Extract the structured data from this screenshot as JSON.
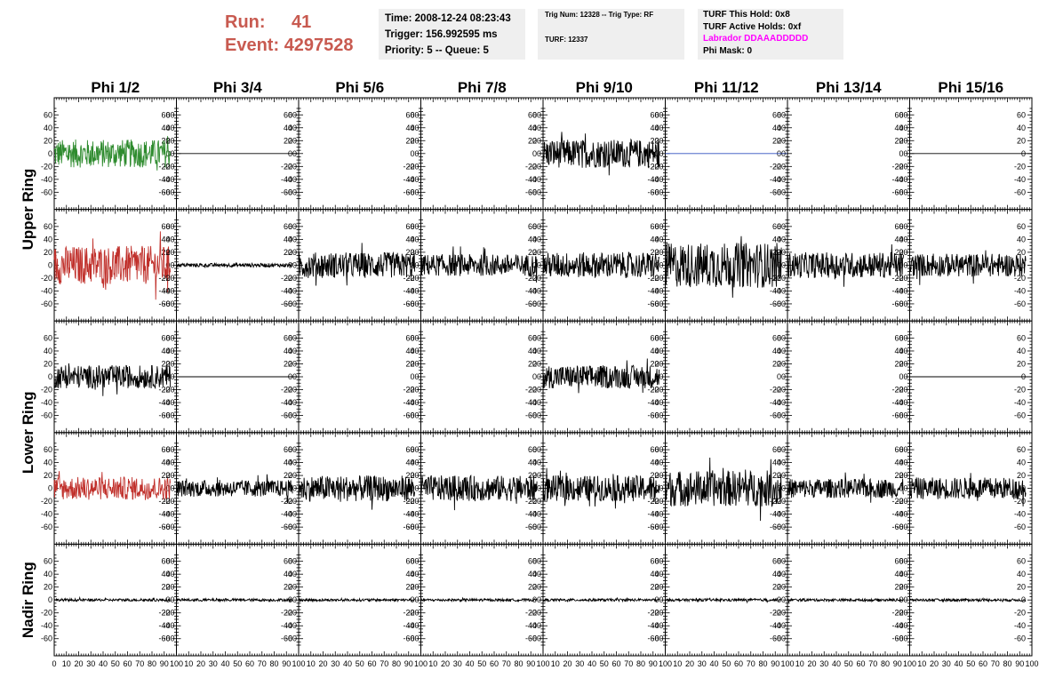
{
  "header": {
    "run_label": "Run:",
    "run_value": "41",
    "event_label": "Event:",
    "event_value": "4297528"
  },
  "info_box_1": {
    "time": "Time: 2008-12-24 08:23:43",
    "trigger": "Trigger: 156.992595 ms",
    "priority": "Priority: 5 -- Queue: 5"
  },
  "info_box_2": {
    "trig_num": "Trig Num: 12328 -- Trig Type: RF",
    "turf": "TURF: 12337"
  },
  "info_box_3": {
    "this_hold": "TURF This Hold: 0x8",
    "active_holds": "TURF Active Holds: 0xf",
    "labrador": "Labrador DDAAADDDDD",
    "phi_mask": "Phi Mask: 0"
  },
  "colors": {
    "run_text": "#c85a50",
    "labrador_text": "#ff00ff",
    "trace_default": "#000000",
    "trace_green": "#2e8b2e",
    "trace_red": "#c0302b",
    "trace_blue": "#3050c0",
    "info_background": "#efefef"
  },
  "chart_data": {
    "type": "line",
    "columns": [
      "Phi 1/2",
      "Phi 3/4",
      "Phi 5/6",
      "Phi 7/8",
      "Phi 9/10",
      "Phi 11/12",
      "Phi 13/14",
      "Phi 15/16"
    ],
    "ring_labels": [
      "Upper Ring",
      "Lower Ring",
      "Nadir Ring"
    ],
    "xlim": [
      0,
      100
    ],
    "ylim": [
      -70,
      70
    ],
    "x_ticks": [
      "0",
      "10",
      "20",
      "30",
      "40",
      "50",
      "60",
      "70",
      "80",
      "90",
      "100"
    ],
    "y_ticks": [
      "60",
      "40",
      "20",
      "0",
      "-20",
      "-40",
      "-60"
    ],
    "grid": false,
    "panel_rows": [
      {
        "ring": "Upper Ring",
        "traces": [
          {
            "color": "green",
            "amplitude": 22,
            "xmax": 95
          },
          {
            "color": "black",
            "amplitude": 0,
            "xmax": 100
          },
          null,
          null,
          {
            "color": "black",
            "amplitude": 22,
            "xmax": 95
          },
          {
            "color": "blue",
            "amplitude": 0,
            "xmax": 100
          },
          null,
          {
            "color": "black",
            "amplitude": 0,
            "xmax": 100
          }
        ]
      },
      {
        "ring": "Upper Ring",
        "traces": [
          {
            "color": "red",
            "amplitude": 30,
            "xmax": 95
          },
          {
            "color": "black",
            "amplitude": 3,
            "xmax": 95
          },
          {
            "color": "black",
            "amplitude": 20,
            "xmax": 95
          },
          {
            "color": "black",
            "amplitude": 17,
            "xmax": 95
          },
          {
            "color": "black",
            "amplitude": 20,
            "xmax": 95
          },
          {
            "color": "black",
            "amplitude": 35,
            "xmax": 95
          },
          {
            "color": "black",
            "amplitude": 20,
            "xmax": 95
          },
          {
            "color": "black",
            "amplitude": 18,
            "xmax": 95
          }
        ]
      },
      {
        "ring": "Lower Ring",
        "traces": [
          {
            "color": "black",
            "amplitude": 18,
            "xmax": 95
          },
          {
            "color": "black",
            "amplitude": 0,
            "xmax": 100
          },
          null,
          null,
          {
            "color": "black",
            "amplitude": 18,
            "xmax": 95
          },
          null,
          null,
          {
            "color": "black",
            "amplitude": 0,
            "xmax": 100
          }
        ]
      },
      {
        "ring": "Lower Ring",
        "traces": [
          {
            "color": "red",
            "amplitude": 18,
            "xmax": 95
          },
          {
            "color": "black",
            "amplitude": 13,
            "xmax": 95
          },
          {
            "color": "black",
            "amplitude": 20,
            "xmax": 95
          },
          {
            "color": "black",
            "amplitude": 20,
            "xmax": 95
          },
          {
            "color": "black",
            "amplitude": 20,
            "xmax": 95
          },
          {
            "color": "black",
            "amplitude": 28,
            "xmax": 95
          },
          {
            "color": "black",
            "amplitude": 15,
            "xmax": 95
          },
          {
            "color": "black",
            "amplitude": 17,
            "xmax": 95
          }
        ]
      },
      {
        "ring": "Nadir Ring",
        "traces": [
          {
            "color": "black",
            "amplitude": 2,
            "xmax": 95
          },
          {
            "color": "black",
            "amplitude": 2,
            "xmax": 95
          },
          {
            "color": "black",
            "amplitude": 2,
            "xmax": 95
          },
          {
            "color": "black",
            "amplitude": 2,
            "xmax": 95
          },
          {
            "color": "black",
            "amplitude": 2,
            "xmax": 95
          },
          {
            "color": "black",
            "amplitude": 2,
            "xmax": 95
          },
          {
            "color": "black",
            "amplitude": 2,
            "xmax": 95
          },
          {
            "color": "black",
            "amplitude": 2,
            "xmax": 95
          }
        ]
      }
    ]
  }
}
